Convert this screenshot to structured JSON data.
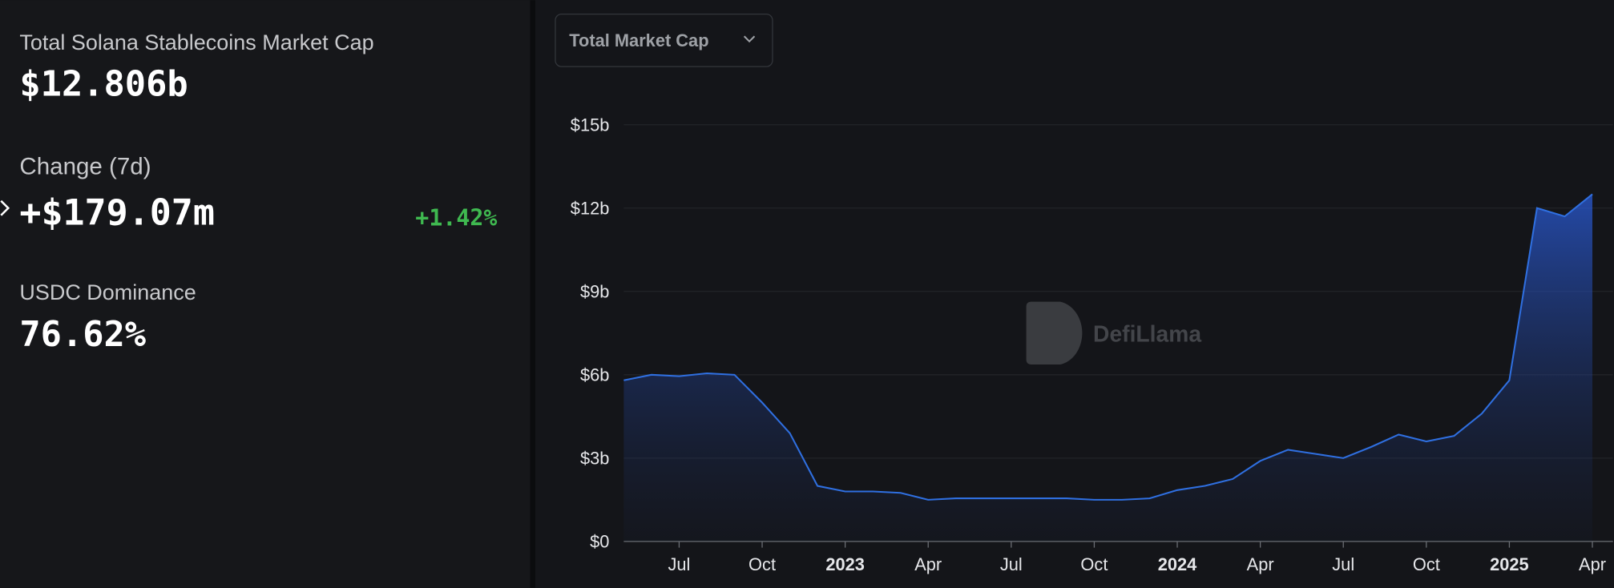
{
  "stats": [
    {
      "label": "Total Solana Stablecoins Market Cap",
      "value": "$12.806b"
    },
    {
      "label": "Change (7d)",
      "value": "+$179.07m",
      "change": "+1.42%"
    },
    {
      "label": "USDC Dominance",
      "value": "76.62%"
    }
  ],
  "dropdown": "Total Market Cap",
  "watermark": "DefiLlama",
  "chart_data": {
    "type": "area",
    "x": [
      "2022-05",
      "2022-06",
      "2022-07",
      "2022-08",
      "2022-09",
      "2022-10",
      "2022-11",
      "2022-12",
      "2023-01",
      "2023-02",
      "2023-03",
      "2023-04",
      "2023-05",
      "2023-06",
      "2023-07",
      "2023-08",
      "2023-09",
      "2023-10",
      "2023-11",
      "2023-12",
      "2024-01",
      "2024-02",
      "2024-03",
      "2024-04",
      "2024-05",
      "2024-06",
      "2024-07",
      "2024-08",
      "2024-09",
      "2024-10",
      "2024-11",
      "2024-12",
      "2025-01",
      "2025-02",
      "2025-03",
      "2025-04"
    ],
    "values": [
      5.8,
      6.0,
      5.95,
      6.05,
      6.0,
      5.0,
      3.9,
      2.0,
      1.8,
      1.8,
      1.75,
      1.5,
      1.55,
      1.55,
      1.55,
      1.55,
      1.55,
      1.5,
      1.5,
      1.55,
      1.85,
      2.0,
      2.25,
      2.9,
      3.3,
      3.15,
      3.0,
      3.4,
      3.85,
      3.6,
      3.8,
      4.6,
      5.8,
      12.0,
      11.7,
      12.5
    ],
    "color": "#2f6fe0",
    "xlim": [
      "2022-05",
      "2025-04"
    ],
    "xticks": [
      {
        "value": "2022-07",
        "label": "Jul"
      },
      {
        "value": "2022-10",
        "label": "Oct"
      },
      {
        "value": "2023-01",
        "label": "2023"
      },
      {
        "value": "2023-04",
        "label": "Apr"
      },
      {
        "value": "2023-07",
        "label": "Jul"
      },
      {
        "value": "2023-10",
        "label": "Oct"
      },
      {
        "value": "2024-01",
        "label": "2024"
      },
      {
        "value": "2024-04",
        "label": "Apr"
      },
      {
        "value": "2024-07",
        "label": "Jul"
      },
      {
        "value": "2024-10",
        "label": "Oct"
      },
      {
        "value": "2025-01",
        "label": "2025"
      },
      {
        "value": "2025-04",
        "label": "Apr"
      }
    ],
    "ylim": [
      0,
      15
    ],
    "yticks": [
      {
        "value": 0,
        "label": "$0"
      },
      {
        "value": 3,
        "label": "$3b"
      },
      {
        "value": 6,
        "label": "$6b"
      },
      {
        "value": 9,
        "label": "$9b"
      },
      {
        "value": 12,
        "label": "$12b"
      },
      {
        "value": 15,
        "label": "$15b"
      }
    ],
    "grid": true
  }
}
